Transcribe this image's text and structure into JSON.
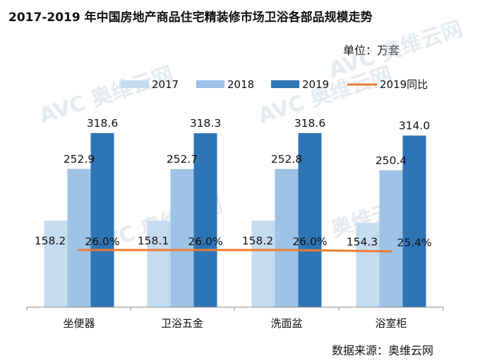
{
  "title": "2017-2019 年中国房地产商品住宅精装修市场卫浴各部品规模走势",
  "unit_label": "单位：万套",
  "source_label": "数据来源：奥维云网",
  "watermark_text": "AVC 奥维云网",
  "colors": {
    "2017": "#c5dcf0",
    "2018": "#9dc3e6",
    "2019": "#2e75b6",
    "yoy": "#ed7d31",
    "axis": "#888888"
  },
  "chart_data": {
    "type": "bar",
    "categories": [
      "坐便器",
      "卫浴五金",
      "洗面盆",
      "浴室柜"
    ],
    "series": [
      {
        "name": "2017",
        "values": [
          158.2,
          158.1,
          158.2,
          154.3
        ],
        "labels": [
          "158.2",
          "158.1",
          "158.2",
          "154.3"
        ]
      },
      {
        "name": "2018",
        "values": [
          252.9,
          252.7,
          252.8,
          250.4
        ],
        "labels": [
          "252.9",
          "252.7",
          "252.8",
          "250.4"
        ]
      },
      {
        "name": "2019",
        "values": [
          318.6,
          318.3,
          318.6,
          314.0
        ],
        "labels": [
          "318.6",
          "318.3",
          "318.6",
          "314.0"
        ]
      }
    ],
    "line_series": {
      "name": "2019同比",
      "values": [
        26.0,
        26.0,
        26.0,
        25.4
      ],
      "labels": [
        "26.0%",
        "26.0%",
        "26.0%",
        "25.4%"
      ]
    },
    "legend": [
      "2017",
      "2018",
      "2019",
      "2019同比"
    ],
    "legend_position": "top",
    "ylim": [
      0,
      330
    ],
    "y2lim": [
      0,
      82
    ]
  }
}
